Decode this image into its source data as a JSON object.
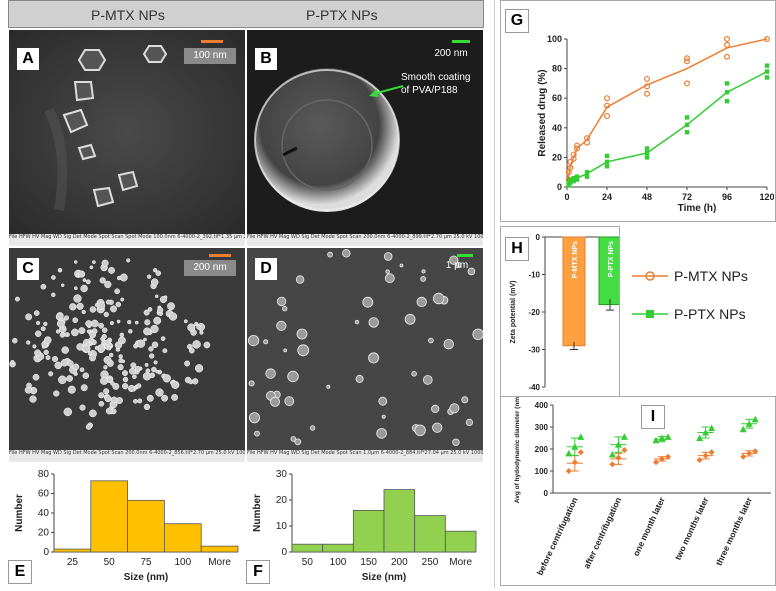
{
  "header": {
    "left_title": "P-MTX NPs",
    "right_title": "P-PTX NPs"
  },
  "sem": {
    "A": {
      "label": "A",
      "scale": "100 nm",
      "info": "File HFW HV Mag WD Sig Det Mode Spot Scan Spot Mode 100.0nm  6-4000-2_392.tif*1.35 µm 25.0 kV 200000x 8.9 mm SE ETD 300V 2.5 111.11 s 2.5 300V RASTAK"
    },
    "B": {
      "label": "B",
      "scale": "200 nm",
      "annotation": [
        "Smooth coating",
        "of PVA/P188"
      ],
      "info": "File HFW HV Mag WD Sig Det Mode Spot Scan 200.0nm  6-4000-2_899.tif*2.70 µm 25.0 kV 100000x 9.1 mm SE ETD 300V 3.0 111.11 s RASTAK"
    },
    "C": {
      "label": "C",
      "scale": "200 nm",
      "info": "File HFW HV Mag WD Sig Det Mode Spot Scan 200.0nm  6-4000-2_856.tif*2.70 µm 25.0 kV 100000x 9.0 mm SE ETD 300V 3.0 111.11 s RASTAK"
    },
    "D": {
      "label": "D",
      "scale": "1 µm",
      "info": "File HFW HV Mag WD Sig Det Mode Spot Scan 1.0µm  6-4000-2_884.tif*27.04 µm 25.0 kV 10000x 9.1 mm SE ETD 300V 3.5 111.11 s RASTAK"
    }
  },
  "chart_data": [
    {
      "id": "E",
      "panel_label": "E",
      "type": "bar",
      "color": "#ffc000",
      "categories": [
        "25",
        "50",
        "75",
        "100",
        "More"
      ],
      "values": [
        3,
        73,
        53,
        29,
        6
      ],
      "xlabel": "Size (nm)",
      "ylabel": "Number",
      "ylim": [
        0,
        80
      ],
      "yticks": [
        0,
        20,
        40,
        60,
        80
      ],
      "grid": false
    },
    {
      "id": "F",
      "panel_label": "F",
      "type": "bar",
      "color": "#92d050",
      "categories": [
        "50",
        "100",
        "150",
        "200",
        "250",
        "More"
      ],
      "values": [
        3,
        3,
        16,
        24,
        14,
        8
      ],
      "xlabel": "Size (nm)",
      "ylabel": "Number",
      "ylim": [
        0,
        30
      ],
      "yticks": [
        0,
        10,
        20,
        30
      ],
      "grid": false
    },
    {
      "id": "G",
      "panel_label": "G",
      "type": "scatter",
      "xlabel": "Time (h)",
      "ylabel": "Released drug (%)",
      "xlim": [
        0,
        120
      ],
      "ylim": [
        0,
        100
      ],
      "xticks": [
        0,
        24,
        48,
        72,
        96,
        120
      ],
      "yticks": [
        0,
        20,
        40,
        60,
        80,
        100
      ],
      "grid": false,
      "series": [
        {
          "name": "P-MTX NPs",
          "color": "#ed7d31",
          "marker": "circle",
          "mean_x": [
            0,
            1,
            2,
            4,
            6,
            12,
            24,
            48,
            72,
            96,
            120
          ],
          "mean_y": [
            0,
            8,
            14,
            20,
            26,
            32,
            54,
            69,
            80,
            94,
            100
          ],
          "points": [
            [
              1,
              5
            ],
            [
              1,
              10
            ],
            [
              2,
              13
            ],
            [
              2,
              17
            ],
            [
              4,
              19
            ],
            [
              4,
              22
            ],
            [
              6,
              26
            ],
            [
              6,
              28
            ],
            [
              12,
              30
            ],
            [
              12,
              33
            ],
            [
              24,
              48
            ],
            [
              24,
              55
            ],
            [
              24,
              60
            ],
            [
              48,
              63
            ],
            [
              48,
              68
            ],
            [
              48,
              73
            ],
            [
              72,
              70
            ],
            [
              72,
              85
            ],
            [
              72,
              87
            ],
            [
              96,
              88
            ],
            [
              96,
              96
            ],
            [
              96,
              100
            ],
            [
              120,
              100
            ]
          ]
        },
        {
          "name": "P-PTX NPs",
          "color": "#33cc33",
          "marker": "square",
          "mean_x": [
            0,
            1,
            2,
            4,
            6,
            12,
            24,
            48,
            72,
            96,
            120
          ],
          "mean_y": [
            0,
            2,
            4,
            5,
            6,
            9,
            17,
            23,
            42,
            64,
            78
          ],
          "points": [
            [
              1,
              1
            ],
            [
              1,
              3
            ],
            [
              2,
              3
            ],
            [
              2,
              5
            ],
            [
              4,
              4
            ],
            [
              4,
              6
            ],
            [
              6,
              5
            ],
            [
              6,
              7
            ],
            [
              12,
              7
            ],
            [
              12,
              10
            ],
            [
              24,
              14
            ],
            [
              24,
              17
            ],
            [
              24,
              21
            ],
            [
              48,
              20
            ],
            [
              48,
              23
            ],
            [
              48,
              26
            ],
            [
              72,
              37
            ],
            [
              72,
              42
            ],
            [
              72,
              47
            ],
            [
              96,
              58
            ],
            [
              96,
              64
            ],
            [
              96,
              70
            ],
            [
              120,
              74
            ],
            [
              120,
              78
            ],
            [
              120,
              82
            ]
          ]
        }
      ]
    },
    {
      "id": "H",
      "panel_label": "H",
      "type": "bar",
      "ylabel": "Zeta potential (mV)",
      "ylim": [
        -40,
        0
      ],
      "yticks": [
        0,
        -10,
        -20,
        -30,
        -40
      ],
      "grid": false,
      "bars": [
        {
          "label": "P-MTX NPs",
          "value": -29,
          "error": 1,
          "color": "#ffa040",
          "edge": "#ed7d31"
        },
        {
          "label": "P-PTX NPs",
          "value": -18,
          "error": 1.5,
          "color": "#44dd44",
          "edge": "#1e9e1e"
        }
      ]
    },
    {
      "id": "I",
      "panel_label": "I",
      "type": "scatter",
      "ylabel": "Avg of hydodynamic diameter (nm)",
      "ylim": [
        0,
        400
      ],
      "yticks": [
        0,
        100,
        200,
        300,
        400
      ],
      "grid": false,
      "categories": [
        "before centrifugation",
        "after centrifugation",
        "one month later",
        "two months later",
        "three months later"
      ],
      "series": [
        {
          "name": "P-MTX NPs",
          "color": "#ed7d31",
          "marker": "diamond",
          "values": [
            [
              100,
              140,
              185
            ],
            [
              130,
              160,
              195
            ],
            [
              140,
              155,
              165
            ],
            [
              150,
              170,
              185
            ],
            [
              165,
              180,
              190
            ]
          ],
          "mean": [
            135,
            155,
            155,
            170,
            180
          ],
          "sd": [
            35,
            25,
            10,
            15,
            12
          ]
        },
        {
          "name": "P-PTX NPs",
          "color": "#33cc33",
          "marker": "triangle",
          "values": [
            [
              180,
              210,
              255
            ],
            [
              175,
              220,
              255
            ],
            [
              240,
              250,
              255
            ],
            [
              250,
              275,
              295
            ],
            [
              290,
              315,
              335
            ]
          ],
          "mean": [
            210,
            220,
            245,
            275,
            315
          ],
          "sd": [
            40,
            35,
            12,
            25,
            20
          ]
        }
      ]
    }
  ],
  "legend": {
    "items": [
      {
        "label": "P-MTX NPs",
        "color": "#ed7d31",
        "marker": "circle"
      },
      {
        "label": "P-PTX NPs",
        "color": "#33cc33",
        "marker": "square"
      }
    ]
  }
}
